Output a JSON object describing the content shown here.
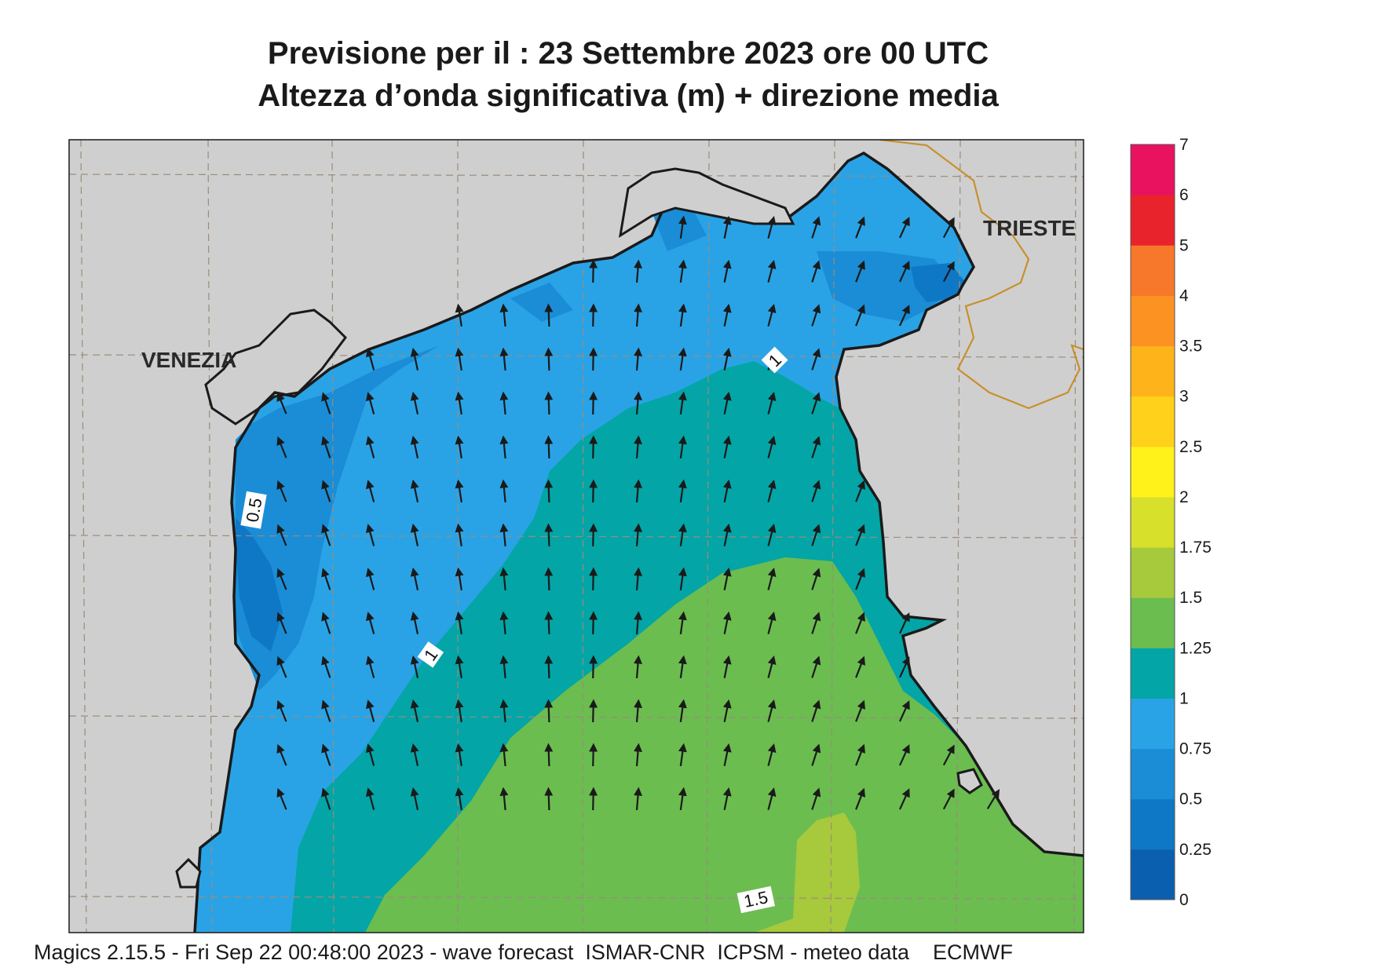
{
  "title_line1": "Previsione per il  :  23 Settembre 2023   ore 00 UTC",
  "title_line2": "Altezza d’onda significativa (m) + direzione media",
  "footer": "Magics 2.15.5 - Fri Sep 22 00:48:00 2023 - wave forecast  ISMAR-CNR  ICPSM - meteo data    ECMWF",
  "cities": [
    {
      "name": "VENEZIA"
    },
    {
      "name": "TRIESTE"
    }
  ],
  "contour_labels": [
    "0.5",
    "1",
    "1",
    "1.5"
  ],
  "legend": {
    "levels": [
      "0",
      "0.25",
      "0.5",
      "0.75",
      "1",
      "1.25",
      "1.5",
      "1.75",
      "2",
      "2.5",
      "3",
      "3.5",
      "4",
      "5",
      "6",
      "7"
    ],
    "colors": [
      "#0a5fae",
      "#0f78c6",
      "#1a8dd6",
      "#2aa3e6",
      "#04a5a6",
      "#6bbd50",
      "#a7c93c",
      "#d7e02a",
      "#fff21a",
      "#ffd11a",
      "#ffb31a",
      "#fb9222",
      "#f7782a",
      "#e9232b",
      "#e8125e"
    ]
  },
  "colors": {
    "land": "#cfcfcf",
    "coast": "#1a1a1a",
    "border": "#c8902c",
    "grid": "#9a8c7a"
  }
}
